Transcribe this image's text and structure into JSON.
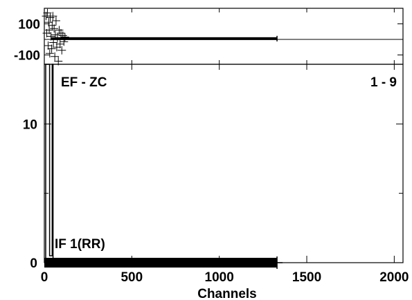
{
  "colors": {
    "background": "#ffffff",
    "ink": "#000000"
  },
  "chart_data": [
    {
      "type": "scatter",
      "panel": "top",
      "grid": false,
      "xlim": [
        0,
        2050
      ],
      "ylim": [
        -160,
        200
      ],
      "yticks": [
        "100",
        "-100"
      ],
      "ytick_values": [
        100,
        -100
      ],
      "baseline": 0,
      "marker": "plus",
      "series": [
        {
          "scatter_points": [
            [
              10,
              150
            ],
            [
              14,
              40
            ],
            [
              18,
              170
            ],
            [
              22,
              -40
            ],
            [
              25,
              110
            ],
            [
              28,
              60
            ],
            [
              31,
              -90
            ],
            [
              34,
              140
            ],
            [
              38,
              20
            ],
            [
              42,
              -60
            ],
            [
              45,
              90
            ],
            [
              49,
              150
            ],
            [
              52,
              -20
            ],
            [
              56,
              70
            ],
            [
              60,
              -110
            ],
            [
              63,
              30
            ],
            [
              67,
              120
            ],
            [
              71,
              -50
            ],
            [
              75,
              10
            ],
            [
              80,
              -140
            ],
            [
              85,
              60
            ],
            [
              90,
              -30
            ],
            [
              95,
              40
            ],
            [
              100,
              -70
            ],
            [
              106,
              25
            ],
            [
              112,
              -15
            ],
            [
              118,
              15
            ]
          ],
          "band": {
            "x_start": 40,
            "x_end": 1330,
            "y_center": 5,
            "half_height": 9
          }
        }
      ]
    },
    {
      "type": "line",
      "panel": "bottom",
      "grid": false,
      "xlabel": "Channels",
      "xlim": [
        0,
        2050
      ],
      "ylim": [
        0,
        14.3
      ],
      "xticks": [
        0,
        500,
        1000,
        1500,
        2000
      ],
      "yticks": [
        0,
        10
      ],
      "annotations": [
        "EF - ZC",
        "1 - 9",
        "IF 1(RR)"
      ],
      "series": [
        {
          "x": [
            0,
            8,
            8,
            30,
            30,
            45,
            45,
            50,
            50,
            1330
          ],
          "y": [
            0,
            0,
            14.3,
            14.3,
            0.5,
            0.5,
            14.3,
            14.3,
            0.05,
            0.05
          ]
        }
      ],
      "band": {
        "x_start": 0,
        "x_end": 1330,
        "y_center": 0,
        "half_height": 0.35
      }
    }
  ]
}
